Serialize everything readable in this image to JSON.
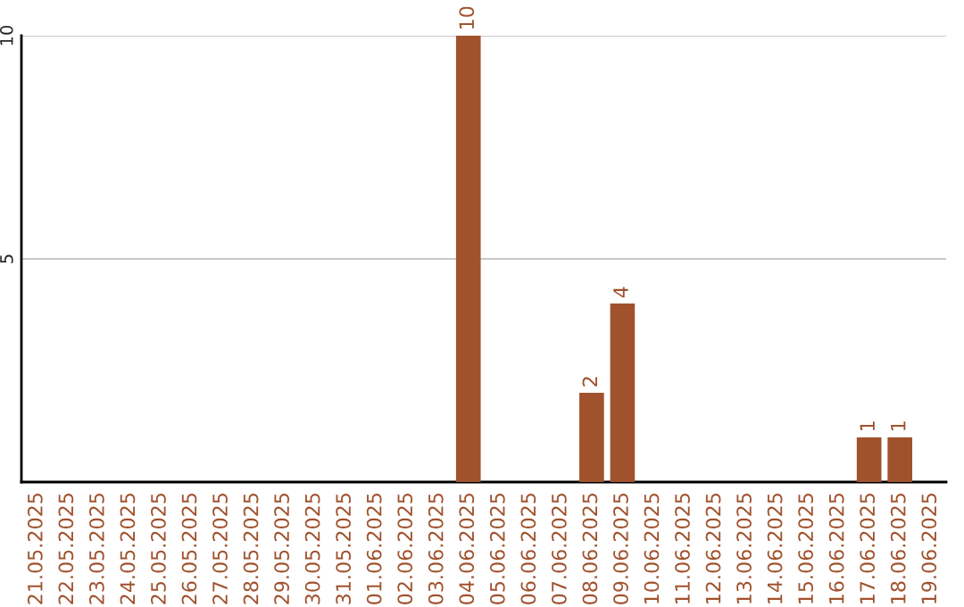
{
  "chart_data": {
    "type": "bar",
    "categories": [
      "21.05.2025",
      "22.05.2025",
      "23.05.2025",
      "24.05.2025",
      "25.05.2025",
      "26.05.2025",
      "27.05.2025",
      "28.05.2025",
      "29.05.2025",
      "30.05.2025",
      "31.05.2025",
      "01.06.2025",
      "02.06.2025",
      "03.06.2025",
      "04.06.2025",
      "05.06.2025",
      "06.06.2025",
      "07.06.2025",
      "08.06.2025",
      "09.06.2025",
      "10.06.2025",
      "11.06.2025",
      "12.06.2025",
      "13.06.2025",
      "14.06.2025",
      "15.06.2025",
      "16.06.2025",
      "17.06.2025",
      "18.06.2025",
      "19.06.2025"
    ],
    "values": [
      0,
      0,
      0,
      0,
      0,
      0,
      0,
      0,
      0,
      0,
      0,
      0,
      0,
      0,
      10,
      0,
      0,
      0,
      2,
      4,
      0,
      0,
      0,
      0,
      0,
      0,
      0,
      1,
      1,
      0
    ],
    "value_labels": [
      null,
      null,
      null,
      null,
      null,
      null,
      null,
      null,
      null,
      null,
      null,
      null,
      null,
      null,
      "10",
      null,
      null,
      null,
      "2",
      "4",
      null,
      null,
      null,
      null,
      null,
      null,
      null,
      "1",
      "1",
      null
    ],
    "color": "#a0522d",
    "ylim": [
      0,
      10
    ],
    "yticks": [
      5,
      10
    ],
    "grid": "y",
    "legend": false
  }
}
